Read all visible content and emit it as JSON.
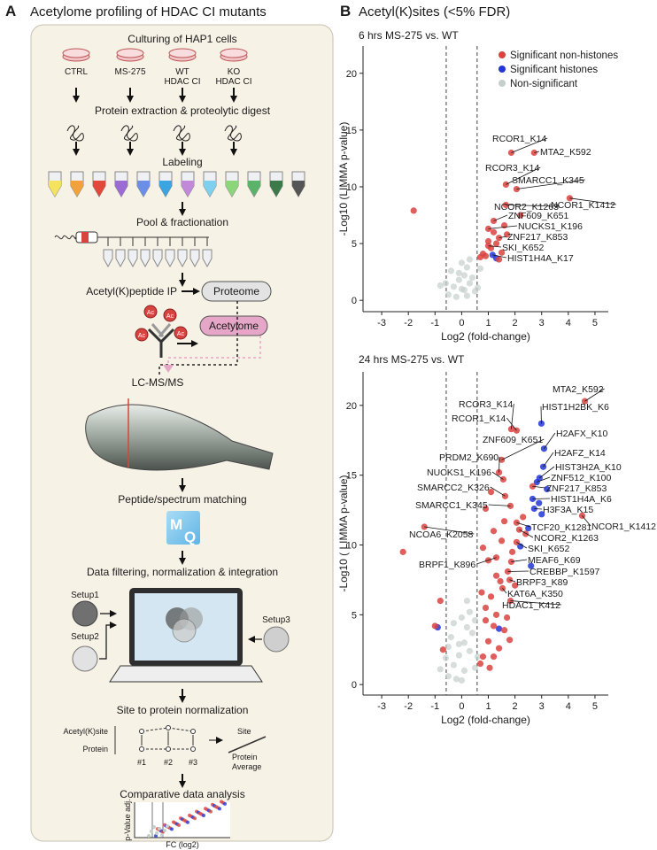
{
  "panel_a": {
    "label": "A",
    "title": "Acetylome profiling of HDAC CI mutants",
    "culturing": "Culturing of HAP1 cells",
    "conditions": [
      [
        "CTRL"
      ],
      [
        "MS-275"
      ],
      [
        "WT",
        "HDAC CI"
      ],
      [
        "KO",
        "HDAC CI"
      ]
    ],
    "digest": "Protein extraction & proteolytic digest",
    "labeling": "Labeling",
    "pool": "Pool & fractionation",
    "ip": "Acetyl(K)peptide IP",
    "proteome": "Proteome",
    "acetylome": "Acetylome",
    "ac": "Ac",
    "lcms": "LC-MS/MS",
    "matching": "Peptide/spectrum matching",
    "logo": [
      "M",
      "Q"
    ],
    "integration": "Data filtering, normalization & integration",
    "setups": [
      "Setup1",
      "Setup2",
      "Setup3"
    ],
    "normalization": "Site to protein normalization",
    "scheme": {
      "site": "Acetyl(K)site",
      "protein": "Protein",
      "replicates": [
        "#1",
        "#2",
        "#3"
      ],
      "result": [
        "Site",
        "Protein",
        "Average"
      ]
    },
    "analysis": "Comparative data analysis",
    "thumb_y": "p-Value adj.",
    "thumb_x": "FC (log2)"
  },
  "panel_b": {
    "label": "B",
    "title": "Acetyl(K)sites (<5% FDR)"
  },
  "chart_data": [
    {
      "type": "scatter",
      "title": "6 hrs MS-275 vs. WT",
      "x_label": "Log2 (fold-change)",
      "y_label": "-Log10 (LIMMA p-value)",
      "xlim": [
        -3.7,
        5.5
      ],
      "ylim": [
        -1,
        22.4
      ],
      "xticks": [
        -3,
        -2,
        -1,
        0,
        1,
        2,
        3,
        4,
        5
      ],
      "yticks": [
        0,
        5,
        10,
        15,
        20
      ],
      "vlines": [
        -0.58,
        0.58
      ],
      "legend": "upper right",
      "series": [
        {
          "name": "Significant non-histones",
          "color": "#d9433f",
          "x": [
            1.86,
            2.72,
            1.66,
            2.06,
            4.05,
            1.66,
            1.2,
            1.0,
            1.4,
            1.0,
            -1.8,
            1.1,
            1.3,
            1.5,
            0.9,
            1.2,
            1.7,
            0.8,
            1.0,
            1.4,
            2.2,
            0.7,
            1.6
          ],
          "y": [
            13.0,
            13.0,
            10.2,
            9.8,
            9.0,
            8.4,
            7.0,
            6.3,
            5.5,
            4.8,
            7.9,
            4.6,
            5.0,
            4.2,
            3.9,
            6.0,
            5.8,
            4.1,
            5.2,
            3.6,
            7.5,
            3.8,
            6.6
          ],
          "labels": [
            "RCOR1_K14",
            "MTA2_K592",
            "RCOR3_K14",
            "SMARCC1_K345",
            "NCOR1_K1412",
            "NCOR2_K1263",
            "ZNF609_K651",
            "NUCKS1_K196",
            "ZNF217_K853",
            "SKI_K652",
            null,
            null,
            null,
            null,
            null,
            null,
            null,
            null,
            null,
            null,
            null,
            null,
            null
          ]
        },
        {
          "name": "Significant histones",
          "color": "#2236d6",
          "x": [
            1.16,
            1.3
          ],
          "y": [
            4.0,
            3.7
          ],
          "labels": [
            "HIST1H4A_K17",
            null
          ]
        },
        {
          "name": "Non-significant",
          "color": "#c4cfcc",
          "x": [
            -0.5,
            -0.3,
            -0.1,
            0.1,
            0.3,
            0.5,
            -0.4,
            0.2,
            0.0,
            -0.2,
            0.4,
            0.6,
            -0.6,
            0.1,
            -0.1,
            0.3,
            0.7,
            -0.8,
            0.0,
            0.2
          ],
          "y": [
            0.5,
            1.2,
            1.8,
            2.2,
            1.5,
            0.8,
            2.6,
            2.9,
            3.3,
            0.3,
            2.0,
            1.1,
            1.5,
            0.9,
            2.4,
            3.6,
            2.8,
            1.3,
            1.0,
            0.4
          ]
        }
      ]
    },
    {
      "type": "scatter",
      "title": "24 hrs MS-275 vs. WT",
      "x_label": "Log2 (fold-change)",
      "y_label": "-Log10 ( LIMMA p-value)",
      "xlim": [
        -3.7,
        5.5
      ],
      "ylim": [
        -0.75,
        22.4
      ],
      "xticks": [
        -3,
        -2,
        -1,
        0,
        1,
        2,
        3,
        4,
        5
      ],
      "yticks": [
        0,
        5,
        10,
        15,
        20
      ],
      "vlines": [
        -0.58,
        0.58
      ],
      "series": [
        {
          "color": "#d9433f",
          "x": [
            4.62,
            1.86,
            2.06,
            1.5,
            1.4,
            1.56,
            2.66,
            1.63,
            1.83,
            4.52,
            2.06,
            -1.4,
            2.16,
            2.06,
            1.3,
            1.86,
            1.73,
            1.8,
            1.53,
            1.83,
            0.8,
            1.0,
            1.2,
            0.9,
            1.1,
            1.3,
            0.7,
            1.4,
            1.6,
            1.0,
            0.8,
            1.2,
            1.5,
            1.9,
            2.3,
            0.9,
            1.1,
            1.7,
            2.0,
            1.3,
            0.75,
            1.05,
            1.45,
            1.8,
            2.4,
            -0.8,
            -1.0,
            -0.7,
            -2.2,
            1.6,
            1.2,
            0.9
          ],
          "y": [
            20.3,
            18.3,
            18.2,
            16.1,
            15.2,
            14.7,
            14.2,
            13.5,
            12.8,
            12.1,
            11.6,
            11.3,
            11.1,
            10.2,
            9.1,
            8.8,
            8.1,
            7.5,
            6.9,
            6.0,
            2.0,
            3.1,
            4.2,
            5.5,
            6.3,
            7.8,
            1.5,
            2.6,
            3.9,
            8.9,
            9.8,
            11.0,
            10.3,
            9.5,
            12.0,
            12.6,
            13.8,
            4.8,
            7.1,
            5.0,
            6.6,
            1.2,
            7.4,
            3.2,
            10.8,
            6.0,
            4.2,
            2.5,
            9.5,
            11.7,
            2.0,
            4.6
          ],
          "labels": [
            "MTA2_K592",
            "RCOR3_K14",
            "RCOR1_K14",
            "ZNF609_K651",
            "PRDM2_K690",
            "NUCKS1_K196",
            "ZNF217_K853",
            "SMARCC2_K326",
            "SMARCC1_K345",
            "NCOR1_K1412",
            "TCF20_K1281",
            "NCOA6_K2058",
            "NCOR2_K1263",
            "SKI_K652",
            "BRPF1_K896",
            "MEAF6_K69",
            "CREBBP_K1597",
            "BRPF3_K89",
            "KAT6A_K350",
            "HDAC1_K412",
            null,
            null,
            null,
            null,
            null,
            null,
            null,
            null,
            null,
            null,
            null,
            null,
            null,
            null,
            null,
            null,
            null,
            null,
            null,
            null,
            null,
            null,
            null,
            null,
            null,
            null,
            null,
            null,
            null,
            null,
            null,
            null
          ]
        },
        {
          "color": "#2236d6",
          "x": [
            2.99,
            3.09,
            3.06,
            2.92,
            2.82,
            2.66,
            2.72,
            2.5,
            2.9,
            3.2,
            2.2,
            1.4,
            -0.9,
            2.6,
            3.0
          ],
          "y": [
            18.7,
            16.9,
            15.6,
            14.8,
            14.5,
            13.3,
            12.6,
            11.2,
            13.0,
            14.0,
            9.9,
            4.0,
            4.1,
            8.5,
            12.2
          ],
          "labels": [
            "HIST1H2BK_K6",
            "H2AFX_K10",
            "H2AFZ_K14",
            "HIST3H2A_K10",
            "ZNF512_K100",
            "HIST1H4A_K6",
            "H3F3A_K15",
            null,
            null,
            null,
            null,
            null,
            null,
            null,
            null
          ]
        },
        {
          "color": "#c4cfcc",
          "x": [
            -0.5,
            -0.3,
            -0.1,
            0.1,
            0.3,
            0.5,
            -0.4,
            0.2,
            0.0,
            -0.2,
            0.4,
            0.6,
            -0.6,
            0.1,
            -0.1,
            0.3,
            -0.8,
            0.0,
            0.2,
            -0.3,
            0.5,
            -0.5
          ],
          "y": [
            0.6,
            1.4,
            2.1,
            3.0,
            2.4,
            1.2,
            3.4,
            4.1,
            4.8,
            0.4,
            3.7,
            2.0,
            1.9,
            1.0,
            2.9,
            5.2,
            1.1,
            0.3,
            6.0,
            4.4,
            4.6,
            2.7
          ]
        }
      ]
    }
  ]
}
